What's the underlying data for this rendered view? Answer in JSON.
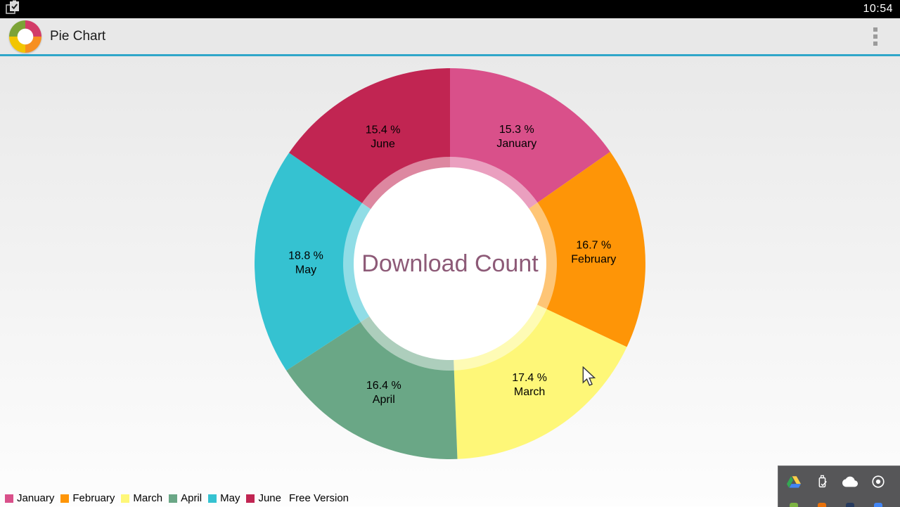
{
  "status_bar": {
    "time": "10:54",
    "notification_icon": "clipboard-check-icon"
  },
  "action_bar": {
    "title": "Pie Chart",
    "app_icon": "pie-chart-logo-icon",
    "overflow_icon": "overflow-menu-icon",
    "accent_color": "#2FA6C9"
  },
  "chart_data": {
    "type": "pie",
    "center_text": "Download Count",
    "center_text_color": "#8D5A77",
    "start": "12-oclock",
    "direction": "clockwise",
    "hole_color": "#FFFFFF",
    "value_suffix": "%",
    "slices": [
      {
        "label": "January",
        "value_pct": 15.3,
        "color": "#D9508A"
      },
      {
        "label": "February",
        "value_pct": 16.7,
        "color": "#FE9507"
      },
      {
        "label": "March",
        "value_pct": 17.4,
        "color": "#FEF778"
      },
      {
        "label": "April",
        "value_pct": 16.4,
        "color": "#6AA786"
      },
      {
        "label": "May",
        "value_pct": 18.8,
        "color": "#35C2D1"
      },
      {
        "label": "June",
        "value_pct": 15.4,
        "color": "#C12552"
      }
    ],
    "legend": {
      "position": "bottom-left",
      "extra_label": "Free Version"
    }
  },
  "tray": {
    "icons": [
      "google-drive-icon",
      "usb-drive-icon",
      "cloud-icon",
      "record-icon"
    ],
    "partial_row_colors": [
      "#7CB342",
      "#E8710A",
      "#263A5E",
      "#4285F4"
    ]
  }
}
